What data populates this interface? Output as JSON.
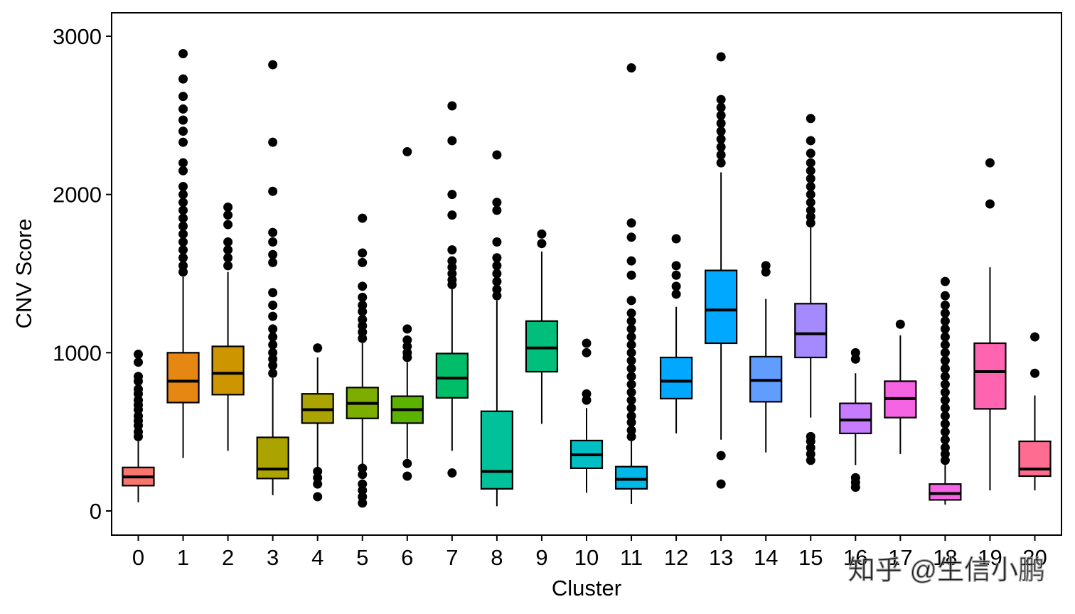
{
  "chart_data": {
    "type": "boxplot",
    "xlabel": "Cluster",
    "ylabel": "CNV Score",
    "ylim": [
      -150,
      3150
    ],
    "yticks": [
      0,
      1000,
      2000,
      3000
    ],
    "yticks_labels": [
      "0",
      "1000",
      "2000",
      "3000"
    ],
    "categories": [
      "0",
      "1",
      "2",
      "3",
      "4",
      "5",
      "6",
      "7",
      "8",
      "9",
      "10",
      "11",
      "12",
      "13",
      "14",
      "15",
      "16",
      "17",
      "18",
      "19",
      "20"
    ],
    "watermark": "知乎 @生信小鹏",
    "series": [
      {
        "cluster": "0",
        "color": "#F8766D",
        "whisker_low": 55,
        "q1": 160,
        "median": 215,
        "q3": 275,
        "whisker_high": 440,
        "outliers": [
          470,
          500,
          540,
          570,
          600,
          640,
          670,
          700,
          740,
          770,
          820,
          850,
          940,
          990
        ]
      },
      {
        "cluster": "1",
        "color": "#E68613",
        "whisker_low": 335,
        "q1": 685,
        "median": 820,
        "q3": 1000,
        "whisker_high": 1480,
        "outliers": [
          1510,
          1550,
          1600,
          1650,
          1700,
          1750,
          1800,
          1850,
          1900,
          1950,
          2000,
          2050,
          2150,
          2200,
          2330,
          2400,
          2470,
          2540,
          2620,
          2730,
          2890
        ]
      },
      {
        "cluster": "2",
        "color": "#CD9600",
        "whisker_low": 380,
        "q1": 735,
        "median": 870,
        "q3": 1040,
        "whisker_high": 1510,
        "outliers": [
          1550,
          1600,
          1650,
          1700,
          1810,
          1870,
          1920
        ]
      },
      {
        "cluster": "3",
        "color": "#ABA300",
        "whisker_low": 100,
        "q1": 205,
        "median": 265,
        "q3": 465,
        "whisker_high": 840,
        "outliers": [
          870,
          920,
          960,
          1000,
          1050,
          1100,
          1150,
          1230,
          1300,
          1380,
          1570,
          1620,
          1700,
          1760,
          2020,
          2330,
          2820
        ]
      },
      {
        "cluster": "4",
        "color": "#ABA300",
        "whisker_low": 265,
        "q1": 555,
        "median": 640,
        "q3": 740,
        "whisker_high": 970,
        "outliers": [
          90,
          170,
          210,
          250,
          1030
        ]
      },
      {
        "cluster": "5",
        "color": "#7CAE00",
        "whisker_low": 295,
        "q1": 585,
        "median": 680,
        "q3": 780,
        "whisker_high": 1060,
        "outliers": [
          50,
          90,
          130,
          170,
          230,
          270,
          1090,
          1130,
          1170,
          1210,
          1260,
          1300,
          1350,
          1420,
          1570,
          1630,
          1850
        ]
      },
      {
        "cluster": "6",
        "color": "#5BB300",
        "whisker_low": 330,
        "q1": 555,
        "median": 640,
        "q3": 725,
        "whisker_high": 940,
        "outliers": [
          220,
          300,
          970,
          1000,
          1040,
          1080,
          1150,
          2270
        ]
      },
      {
        "cluster": "7",
        "color": "#00BE67",
        "whisker_low": 380,
        "q1": 715,
        "median": 840,
        "q3": 995,
        "whisker_high": 1410,
        "outliers": [
          240,
          1430,
          1460,
          1500,
          1540,
          1580,
          1650,
          1870,
          2000,
          2340,
          2560
        ]
      },
      {
        "cluster": "8",
        "color": "#00C19A",
        "whisker_low": 30,
        "q1": 140,
        "median": 250,
        "q3": 630,
        "whisker_high": 1330,
        "outliers": [
          1360,
          1400,
          1450,
          1500,
          1550,
          1600,
          1700,
          1900,
          1950,
          2250
        ]
      },
      {
        "cluster": "9",
        "color": "#00BF7D",
        "whisker_low": 550,
        "q1": 880,
        "median": 1030,
        "q3": 1200,
        "whisker_high": 1640,
        "outliers": [
          1690,
          1750
        ]
      },
      {
        "cluster": "10",
        "color": "#00BFC4",
        "whisker_low": 115,
        "q1": 270,
        "median": 355,
        "q3": 445,
        "whisker_high": 650,
        "outliers": [
          700,
          740,
          1000,
          1060
        ]
      },
      {
        "cluster": "11",
        "color": "#00B8E7",
        "whisker_low": 45,
        "q1": 140,
        "median": 200,
        "q3": 280,
        "whisker_high": 440,
        "outliers": [
          470,
          510,
          560,
          600,
          650,
          700,
          750,
          800,
          850,
          900,
          950,
          1000,
          1050,
          1100,
          1150,
          1200,
          1250,
          1330,
          1490,
          1580,
          1730,
          1820,
          2800
        ]
      },
      {
        "cluster": "12",
        "color": "#00A9FF",
        "whisker_low": 490,
        "q1": 710,
        "median": 820,
        "q3": 970,
        "whisker_high": 1290,
        "outliers": [
          1370,
          1420,
          1490,
          1550,
          1720
        ]
      },
      {
        "cluster": "13",
        "color": "#00A9FF",
        "whisker_low": 450,
        "q1": 1060,
        "median": 1270,
        "q3": 1520,
        "whisker_high": 2140,
        "outliers": [
          170,
          350,
          2200,
          2250,
          2300,
          2350,
          2400,
          2450,
          2500,
          2550,
          2600,
          2870
        ]
      },
      {
        "cluster": "14",
        "color": "#619CFF",
        "whisker_low": 370,
        "q1": 690,
        "median": 825,
        "q3": 975,
        "whisker_high": 1340,
        "outliers": [
          1510,
          1550
        ]
      },
      {
        "cluster": "15",
        "color": "#A58AFF",
        "whisker_low": 590,
        "q1": 970,
        "median": 1120,
        "q3": 1310,
        "whisker_high": 1790,
        "outliers": [
          320,
          360,
          400,
          440,
          470,
          1820,
          1860,
          1900,
          1950,
          2000,
          2050,
          2100,
          2150,
          2200,
          2260,
          2340,
          2480
        ]
      },
      {
        "cluster": "16",
        "color": "#C77CFF",
        "whisker_low": 290,
        "q1": 490,
        "median": 575,
        "q3": 680,
        "whisker_high": 870,
        "outliers": [
          150,
          180,
          210,
          960,
          1000
        ]
      },
      {
        "cluster": "17",
        "color": "#F564E3",
        "whisker_low": 360,
        "q1": 590,
        "median": 710,
        "q3": 820,
        "whisker_high": 1110,
        "outliers": [
          1180
        ]
      },
      {
        "cluster": "18",
        "color": "#F564E3",
        "whisker_low": 40,
        "q1": 70,
        "median": 110,
        "q3": 170,
        "whisker_high": 290,
        "outliers": [
          320,
          360,
          400,
          450,
          500,
          550,
          600,
          650,
          700,
          750,
          800,
          850,
          900,
          950,
          1000,
          1050,
          1100,
          1150,
          1200,
          1250,
          1300,
          1360,
          1450
        ]
      },
      {
        "cluster": "19",
        "color": "#FF64B0",
        "whisker_low": 130,
        "q1": 645,
        "median": 880,
        "q3": 1060,
        "whisker_high": 1540,
        "outliers": [
          1940,
          2200
        ]
      },
      {
        "cluster": "20",
        "color": "#FF6C91",
        "whisker_low": 130,
        "q1": 220,
        "median": 265,
        "q3": 440,
        "whisker_high": 730,
        "outliers": [
          870,
          1100
        ]
      }
    ]
  }
}
